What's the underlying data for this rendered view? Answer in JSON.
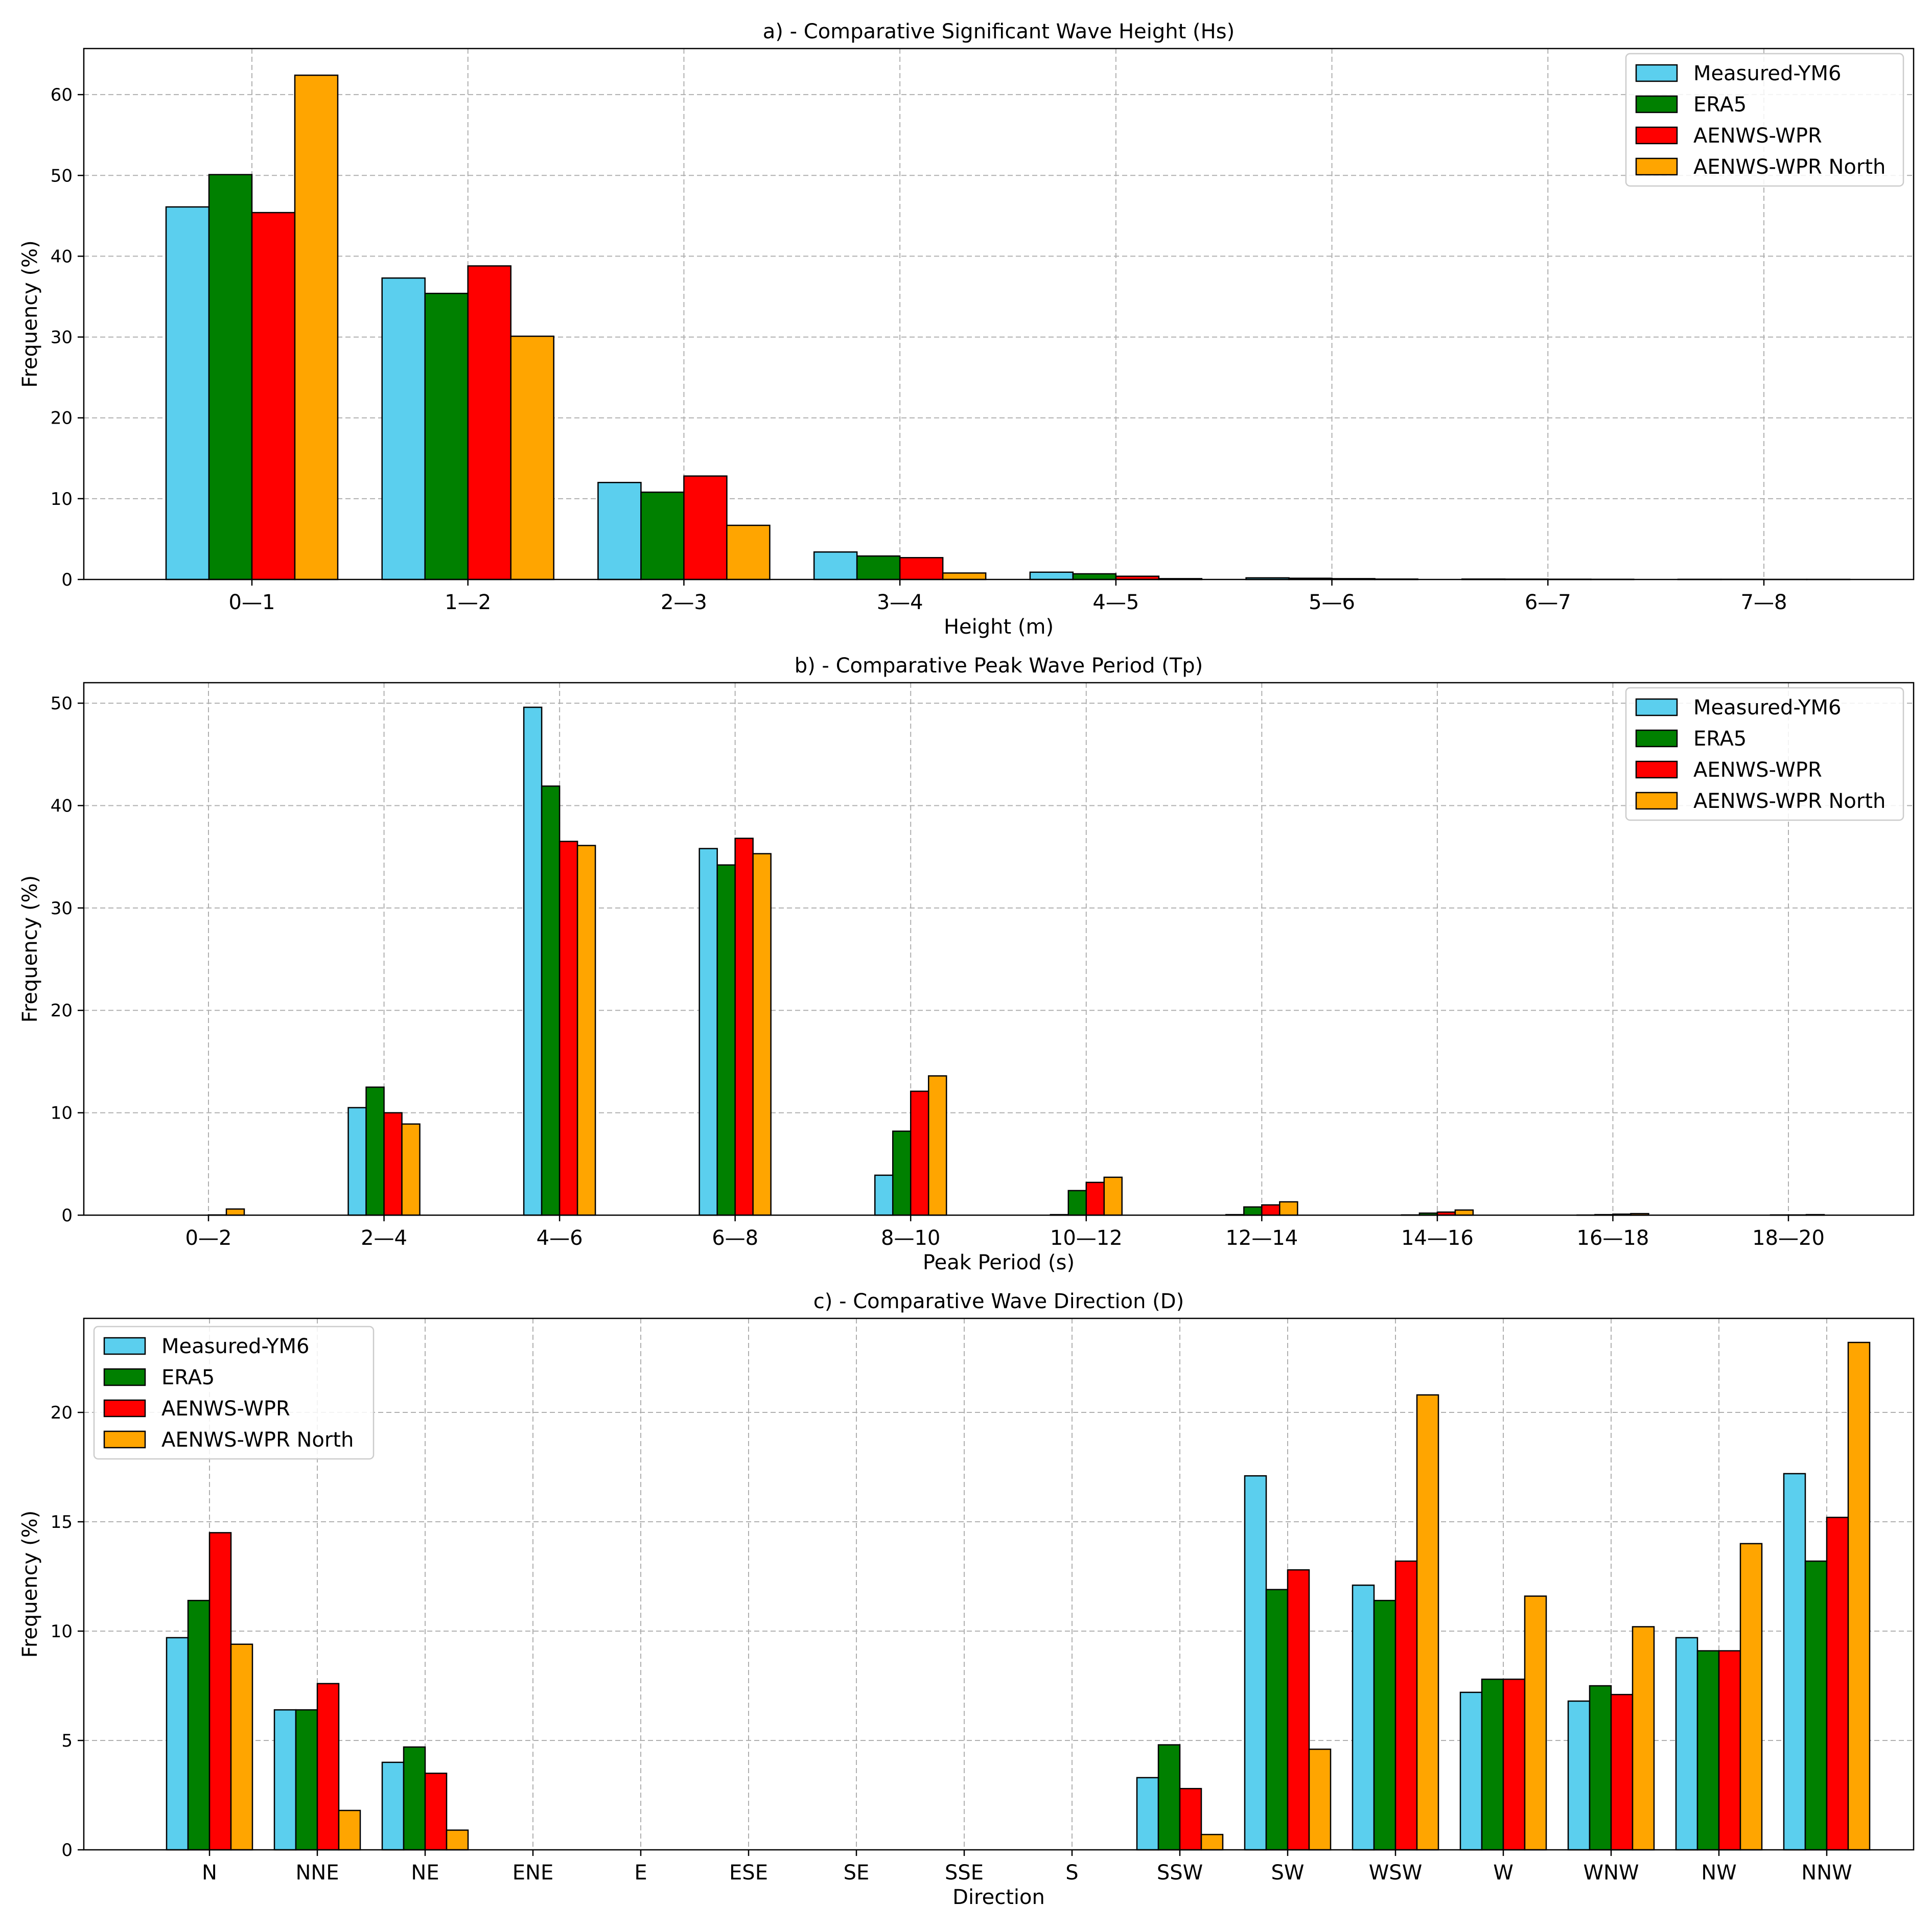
{
  "series_colors": {
    "Measured-YM6": "#5BCFEE",
    "ERA5": "#008000",
    "AENWS-WPR": "#FF0000",
    "AENWS-WPR North": "#FFA500"
  },
  "chart_data": [
    {
      "type": "bar",
      "title": "a) - Comparative Significant Wave Height (Hs)",
      "xlabel": "Height (m)",
      "ylabel": "Frequency (%)",
      "ylim": [
        0,
        65.7
      ],
      "yticks": [
        0,
        10,
        20,
        30,
        40,
        50,
        60
      ],
      "grid": true,
      "legend_position": "top-right",
      "categories": [
        "0—1",
        "1—2",
        "2—3",
        "3—4",
        "4—5",
        "5—6",
        "6—7",
        "7—8"
      ],
      "series": [
        {
          "name": "Measured-YM6",
          "values": [
            46.1,
            37.3,
            12.0,
            3.4,
            0.9,
            0.2,
            0.05,
            0.02
          ]
        },
        {
          "name": "ERA5",
          "values": [
            50.1,
            35.4,
            10.8,
            2.9,
            0.7,
            0.15,
            0.04,
            0.02
          ]
        },
        {
          "name": "AENWS-WPR",
          "values": [
            45.4,
            38.8,
            12.8,
            2.7,
            0.4,
            0.1,
            0.03,
            0.01
          ]
        },
        {
          "name": "AENWS-WPR North",
          "values": [
            62.4,
            30.1,
            6.7,
            0.8,
            0.1,
            0.05,
            0.02,
            0.01
          ]
        }
      ]
    },
    {
      "type": "bar",
      "title": "b) - Comparative Peak Wave Period (Tp)",
      "xlabel": "Peak Period (s)",
      "ylabel": "Frequency (%)",
      "ylim": [
        0,
        52.0
      ],
      "yticks": [
        0,
        10,
        20,
        30,
        40,
        50
      ],
      "grid": true,
      "legend_position": "top-right",
      "categories": [
        "0—2",
        "2—4",
        "4—6",
        "6—8",
        "8—10",
        "10—12",
        "12—14",
        "14—16",
        "16—18",
        "18—20"
      ],
      "series": [
        {
          "name": "Measured-YM6",
          "values": [
            0.0,
            10.5,
            49.6,
            35.8,
            3.9,
            0.05,
            0.05,
            0.02,
            0.01,
            0.0
          ]
        },
        {
          "name": "ERA5",
          "values": [
            0.0,
            12.5,
            41.9,
            34.2,
            8.2,
            2.4,
            0.8,
            0.2,
            0.05,
            0.02
          ]
        },
        {
          "name": "AENWS-WPR",
          "values": [
            0.02,
            10.0,
            36.5,
            36.8,
            12.1,
            3.2,
            1.0,
            0.3,
            0.1,
            0.02
          ]
        },
        {
          "name": "AENWS-WPR North",
          "values": [
            0.6,
            8.9,
            36.1,
            35.3,
            13.6,
            3.7,
            1.3,
            0.5,
            0.15,
            0.05
          ]
        }
      ]
    },
    {
      "type": "bar",
      "title": "c) - Comparative Wave Direction (D)",
      "xlabel": "Direction",
      "ylabel": "Frequency (%)",
      "ylim": [
        0,
        24.3
      ],
      "yticks": [
        0,
        5,
        10,
        15,
        20
      ],
      "grid": true,
      "legend_position": "top-left",
      "categories": [
        "N",
        "NNE",
        "NE",
        "ENE",
        "E",
        "ESE",
        "SE",
        "SSE",
        "S",
        "SSW",
        "SW",
        "WSW",
        "W",
        "WNW",
        "NW",
        "NNW"
      ],
      "series": [
        {
          "name": "Measured-YM6",
          "values": [
            9.7,
            6.4,
            4.0,
            0.0,
            0.0,
            0.0,
            0.0,
            0.0,
            0.0,
            3.3,
            17.1,
            12.1,
            7.2,
            6.8,
            9.7,
            17.2
          ]
        },
        {
          "name": "ERA5",
          "values": [
            11.4,
            6.4,
            4.7,
            0.0,
            0.0,
            0.0,
            0.0,
            0.0,
            0.0,
            4.8,
            11.9,
            11.4,
            7.8,
            7.5,
            9.1,
            13.2
          ]
        },
        {
          "name": "AENWS-WPR",
          "values": [
            14.5,
            7.6,
            3.5,
            0.0,
            0.0,
            0.0,
            0.0,
            0.0,
            0.0,
            2.8,
            12.8,
            13.2,
            7.8,
            7.1,
            9.1,
            15.2
          ]
        },
        {
          "name": "AENWS-WPR North",
          "values": [
            9.4,
            1.8,
            0.9,
            0.0,
            0.0,
            0.0,
            0.0,
            0.0,
            0.0,
            0.7,
            4.6,
            20.8,
            11.6,
            10.2,
            14.0,
            23.2
          ]
        }
      ]
    }
  ]
}
